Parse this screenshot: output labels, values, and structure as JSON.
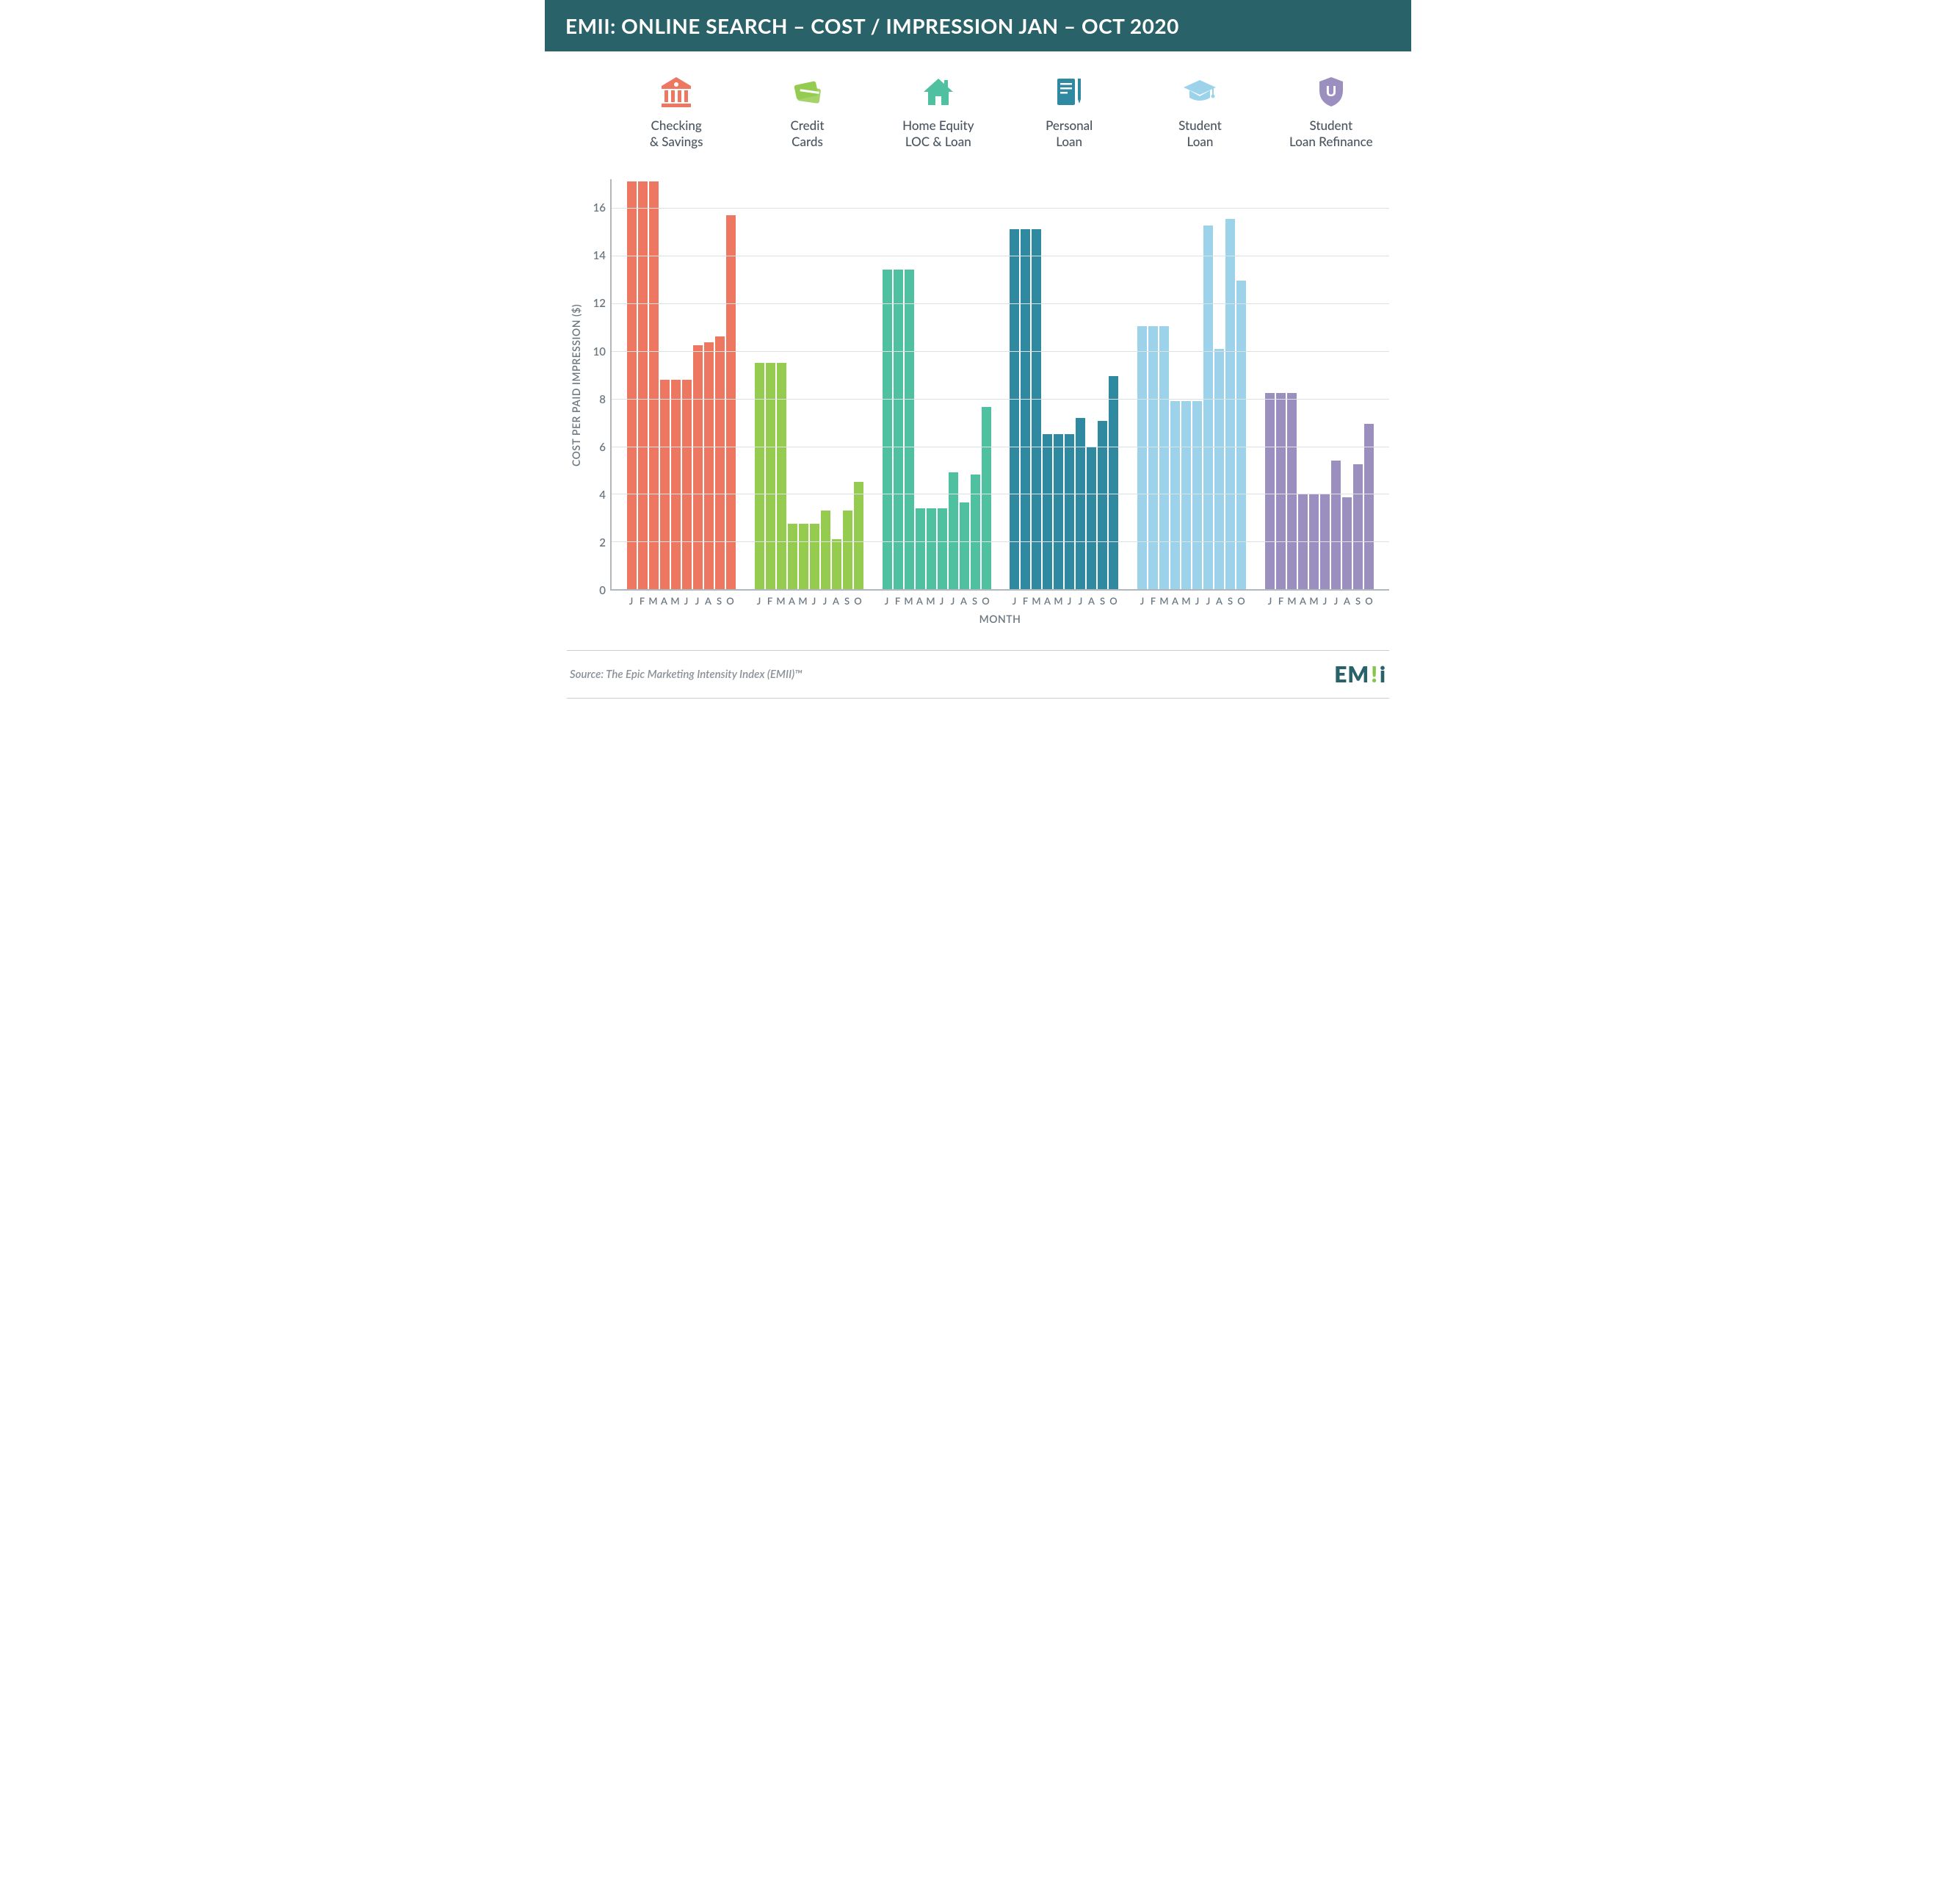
{
  "title": "EMII: ONLINE SEARCH – COST / IMPRESSION JAN – OCT 2020",
  "title_bg": "#2a6269",
  "title_color": "#ffffff",
  "y_axis_label": "COST PER PAID IMPRESSION ($)",
  "x_axis_label": "MONTH",
  "ylim": [
    0,
    17.2
  ],
  "yticks": [
    16,
    14,
    12,
    10,
    8,
    6,
    4,
    2,
    0
  ],
  "month_letters": [
    "J",
    "F",
    "M",
    "A",
    "M",
    "J",
    "J",
    "A",
    "S",
    "O"
  ],
  "grid_color": "#dce1e4",
  "axis_color": "#b0b7bd",
  "text_color": "#6b7780",
  "series": [
    {
      "label": "Checking\n& Savings",
      "color": "#ee7762",
      "icon": "bank",
      "values": [
        17.1,
        17.1,
        17.1,
        8.8,
        8.8,
        8.8,
        10.25,
        10.35,
        10.6,
        15.7
      ]
    },
    {
      "label": "Credit\nCards",
      "color": "#95cb4f",
      "icon": "cards",
      "values": [
        9.5,
        9.5,
        9.5,
        2.75,
        2.75,
        2.75,
        3.3,
        2.1,
        3.3,
        4.5
      ]
    },
    {
      "label": "Home Equity\nLOC & Loan",
      "color": "#4fc0a0",
      "icon": "house",
      "values": [
        13.4,
        13.4,
        13.4,
        3.4,
        3.4,
        3.4,
        4.9,
        3.65,
        4.8,
        7.65
      ]
    },
    {
      "label": "Personal\nLoan",
      "color": "#2f8aa1",
      "icon": "doc",
      "values": [
        15.1,
        15.1,
        15.1,
        6.5,
        6.5,
        6.5,
        7.2,
        6.0,
        7.05,
        8.95
      ]
    },
    {
      "label": "Student\nLoan",
      "color": "#9cd3ea",
      "icon": "grad",
      "values": [
        11.05,
        11.05,
        11.05,
        7.9,
        7.9,
        7.9,
        15.25,
        10.1,
        15.55,
        12.95
      ]
    },
    {
      "label": "Student\nLoan Refinance",
      "color": "#9b8fc0",
      "icon": "shield",
      "values": [
        8.25,
        8.25,
        8.25,
        4.0,
        4.0,
        4.0,
        5.4,
        3.85,
        5.25,
        6.95
      ]
    }
  ],
  "source": "Source: The Epic Marketing Intensity Index (EMII)™",
  "logo_text": "EM",
  "logo_suffix": "i",
  "logo_color": "#2a6269",
  "logo_accent": "#86c44d"
}
